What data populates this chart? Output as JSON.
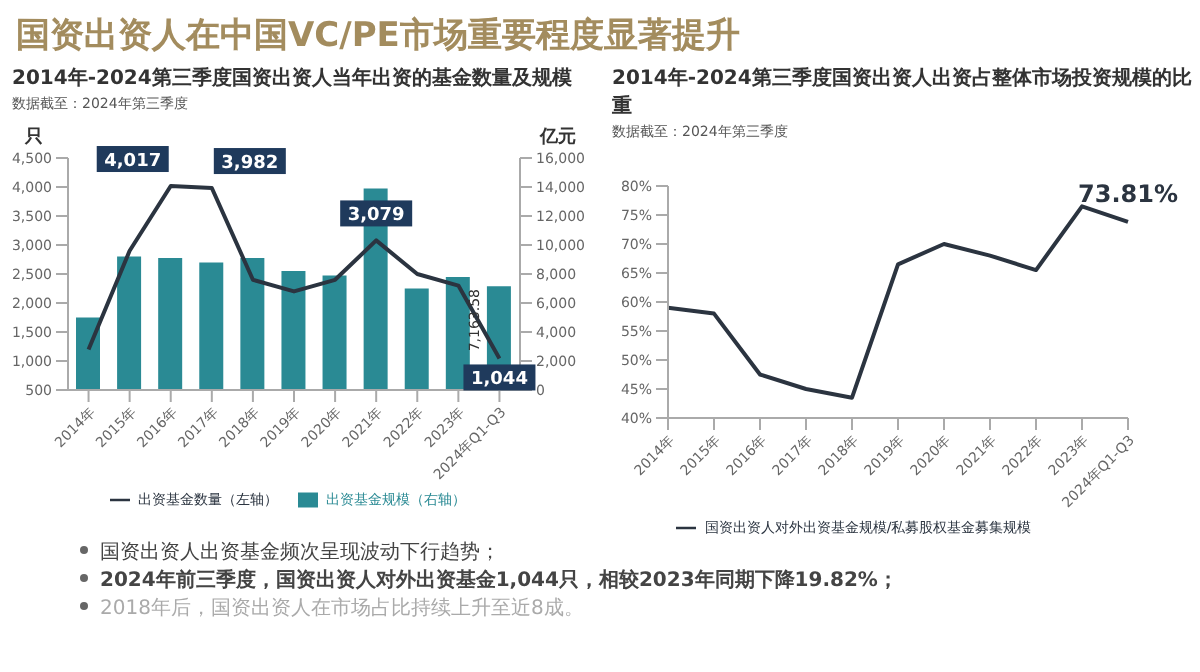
{
  "chart_data": [
    {
      "type": "bar",
      "title": "2014年-2024第三季度国资出资人当年出资的基金数量及规模",
      "subtitle": "数据截至：2024年第三季度",
      "ylabel": "只",
      "y2label": "亿元",
      "categories": [
        "2014年",
        "2015年",
        "2016年",
        "2017年",
        "2018年",
        "2019年",
        "2020年",
        "2021年",
        "2022年",
        "2023年",
        "2024年Q1-Q3"
      ],
      "series": [
        {
          "name": "出资基金规模（右轴）",
          "type": "bar",
          "axis": "y2",
          "color": "#2a8a94",
          "values": [
            5000,
            9200,
            9100,
            8800,
            9100,
            8200,
            7900,
            13900,
            7000,
            7800,
            7163.58
          ],
          "value_labels": [
            null,
            null,
            null,
            null,
            null,
            null,
            null,
            null,
            null,
            null,
            "7,163.58"
          ]
        },
        {
          "name": "出资基金数量（左轴）",
          "type": "line",
          "color": "#2b3440",
          "values": [
            1200,
            2900,
            4017,
            3982,
            2400,
            2200,
            2400,
            3079,
            2500,
            2300,
            1044
          ],
          "value_labels": [
            null,
            null,
            "4,017",
            "3,982",
            null,
            null,
            null,
            "3,079",
            null,
            null,
            "1,044"
          ]
        }
      ],
      "ylim": [
        500,
        4500
      ],
      "yticks": [
        {
          "value": 500,
          "label": "500"
        },
        {
          "value": 1000,
          "label": "1,000"
        },
        {
          "value": 1500,
          "label": "1,500"
        },
        {
          "value": 2000,
          "label": "2,000"
        },
        {
          "value": 2500,
          "label": "2,500"
        },
        {
          "value": 3000,
          "label": "3,000"
        },
        {
          "value": 3500,
          "label": "3,500"
        },
        {
          "value": 4000,
          "label": "4,000"
        },
        {
          "value": 4500,
          "label": "4,500"
        }
      ],
      "y2lim": [
        0,
        16000
      ],
      "y2ticks": [
        0,
        {
          "value": 2000,
          "label": "2,000"
        },
        {
          "value": 4000,
          "label": "4,000"
        },
        {
          "value": 6000,
          "label": "6,000"
        },
        {
          "value": 8000,
          "label": "8,000"
        },
        {
          "value": 10000,
          "label": "10,000"
        },
        {
          "value": 12000,
          "label": "12,000"
        },
        {
          "value": 14000,
          "label": "14,000"
        },
        {
          "value": 16000,
          "label": "16,000"
        }
      ],
      "legend": "bottom",
      "marker": "none"
    },
    {
      "type": "line",
      "title": "2014年-2024第三季度国资出资人出资占整体市场投资规模的比重",
      "subtitle": "数据截至：2024年第三季度",
      "categories": [
        "2014年",
        "2015年",
        "2016年",
        "2017年",
        "2018年",
        "2019年",
        "2020年",
        "2021年",
        "2022年",
        "2023年",
        "2024年Q1-Q3"
      ],
      "series": [
        {
          "name": "国资出资人对外出资基金规模/私募股权基金募集规模",
          "color": "#2b3440",
          "values": [
            59,
            58,
            47.5,
            45,
            43.5,
            66.5,
            70,
            68,
            65.5,
            76.5,
            73.81
          ],
          "value_labels": [
            null,
            null,
            null,
            null,
            null,
            null,
            null,
            null,
            null,
            null,
            "73.81%"
          ]
        }
      ],
      "ylim": [
        40,
        80
      ],
      "yticks": [
        {
          "value": 40,
          "label": "40%"
        },
        {
          "value": 45,
          "label": "45%"
        },
        {
          "value": 50,
          "label": "50%"
        },
        {
          "value": 55,
          "label": "55%"
        },
        {
          "value": 60,
          "label": "60%"
        },
        {
          "value": 65,
          "label": "65%"
        },
        {
          "value": 70,
          "label": "70%"
        },
        {
          "value": 75,
          "label": "75%"
        },
        {
          "value": 80,
          "label": "80%"
        }
      ],
      "legend": "bottom",
      "marker": "none"
    },
    {
      "type": "other",
      "title": "国资出资人在中国VC/PE市场重要程度显著提升",
      "annotations": [
        "国资出资人出资基金频次呈现波动下行趋势；",
        "2024年前三季度，国资出资人对外出资基金1,044只，相较2023年同期下降19.82%；",
        "2018年后，国资出资人在市场占比持续上升至近8成。"
      ]
    }
  ]
}
